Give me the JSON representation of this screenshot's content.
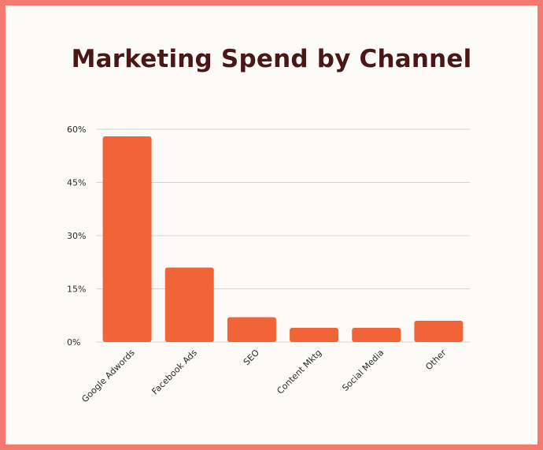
{
  "colors": {
    "background": "#fcfbf7",
    "frame": "#f27a70",
    "bar": "#f06437",
    "title": "#4a1717",
    "grid": "#d4d4d4"
  },
  "chart_data": {
    "type": "bar",
    "title": "Marketing Spend by Channel",
    "xlabel": "",
    "ylabel": "",
    "categories": [
      "Google Adwords",
      "Facebook Ads",
      "SEO",
      "Content Mktg",
      "Social Media",
      "Other"
    ],
    "values": [
      58,
      21,
      7,
      4,
      4,
      6
    ],
    "ylim": [
      0,
      60
    ],
    "yticks": [
      {
        "value": 0,
        "label": "0%"
      },
      {
        "value": 15,
        "label": "15%"
      },
      {
        "value": 30,
        "label": "30%"
      },
      {
        "value": 45,
        "label": "45%"
      },
      {
        "value": 60,
        "label": "60%"
      }
    ],
    "grid": true,
    "legend": "none"
  }
}
